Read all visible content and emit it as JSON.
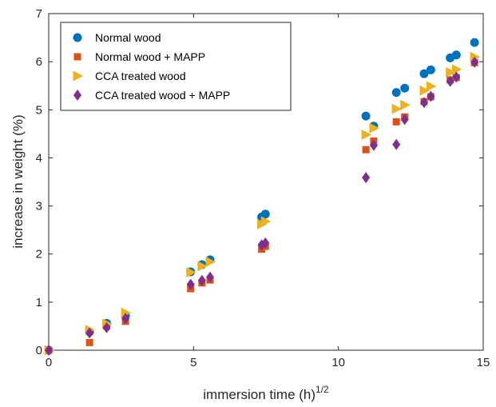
{
  "chart_data": {
    "type": "scatter",
    "xlabel": "immersion time (h)",
    "xlabel_superscript": "1/2",
    "ylabel": "increase in weight (%)",
    "xlim": [
      0,
      15
    ],
    "ylim": [
      0,
      7
    ],
    "xticks": [
      0,
      5,
      10,
      15
    ],
    "yticks": [
      0,
      1,
      2,
      3,
      4,
      5,
      6,
      7
    ],
    "grid": false,
    "legend_position": "top-left",
    "series": [
      {
        "name": "Normal wood",
        "marker": "circle",
        "color": "#0072BD",
        "points": [
          [
            0,
            0
          ],
          [
            1.41,
            0.38
          ],
          [
            2.0,
            0.56
          ],
          [
            2.65,
            0.72
          ],
          [
            4.9,
            1.63
          ],
          [
            5.29,
            1.78
          ],
          [
            5.57,
            1.88
          ],
          [
            7.35,
            2.77
          ],
          [
            7.48,
            2.83
          ],
          [
            10.95,
            4.87
          ],
          [
            11.22,
            4.66
          ],
          [
            12.0,
            5.36
          ],
          [
            12.29,
            5.45
          ],
          [
            12.96,
            5.75
          ],
          [
            13.19,
            5.83
          ],
          [
            13.86,
            6.08
          ],
          [
            14.07,
            6.14
          ],
          [
            14.7,
            6.4
          ]
        ]
      },
      {
        "name": "Normal wood + MAPP",
        "marker": "square",
        "color": "#D95319",
        "points": [
          [
            0,
            0
          ],
          [
            1.41,
            0.16
          ],
          [
            2.0,
            0.5
          ],
          [
            2.65,
            0.6
          ],
          [
            4.9,
            1.28
          ],
          [
            5.29,
            1.4
          ],
          [
            5.57,
            1.46
          ],
          [
            7.35,
            2.1
          ],
          [
            7.48,
            2.16
          ],
          [
            10.95,
            4.17
          ],
          [
            11.22,
            4.35
          ],
          [
            12.0,
            4.75
          ],
          [
            12.29,
            4.85
          ],
          [
            12.96,
            5.17
          ],
          [
            13.19,
            5.27
          ],
          [
            13.86,
            5.62
          ],
          [
            14.07,
            5.67
          ],
          [
            14.7,
            5.98
          ]
        ]
      },
      {
        "name": "CCA treated wood",
        "marker": "triangle-right",
        "color": "#EDB120",
        "points": [
          [
            0,
            0
          ],
          [
            1.41,
            0.42
          ],
          [
            2.0,
            0.55
          ],
          [
            2.65,
            0.78
          ],
          [
            4.9,
            1.62
          ],
          [
            5.29,
            1.75
          ],
          [
            5.57,
            1.84
          ],
          [
            7.35,
            2.62
          ],
          [
            7.48,
            2.68
          ],
          [
            10.95,
            4.48
          ],
          [
            11.22,
            4.62
          ],
          [
            12.0,
            5.02
          ],
          [
            12.29,
            5.1
          ],
          [
            12.96,
            5.4
          ],
          [
            13.19,
            5.49
          ],
          [
            13.86,
            5.78
          ],
          [
            14.07,
            5.84
          ],
          [
            14.7,
            6.1
          ]
        ]
      },
      {
        "name": "CCA treated wood + MAPP",
        "marker": "diamond",
        "color": "#7E2F8E",
        "points": [
          [
            0,
            0
          ],
          [
            1.41,
            0.36
          ],
          [
            2.0,
            0.47
          ],
          [
            2.65,
            0.66
          ],
          [
            4.9,
            1.37
          ],
          [
            5.29,
            1.45
          ],
          [
            5.57,
            1.52
          ],
          [
            7.35,
            2.19
          ],
          [
            7.48,
            2.23
          ],
          [
            10.95,
            3.59
          ],
          [
            11.22,
            4.26
          ],
          [
            12.0,
            4.28
          ],
          [
            12.29,
            4.8
          ],
          [
            12.96,
            5.15
          ],
          [
            13.19,
            5.28
          ],
          [
            13.86,
            5.59
          ],
          [
            14.07,
            5.68
          ],
          [
            14.7,
            5.99
          ]
        ]
      }
    ]
  }
}
